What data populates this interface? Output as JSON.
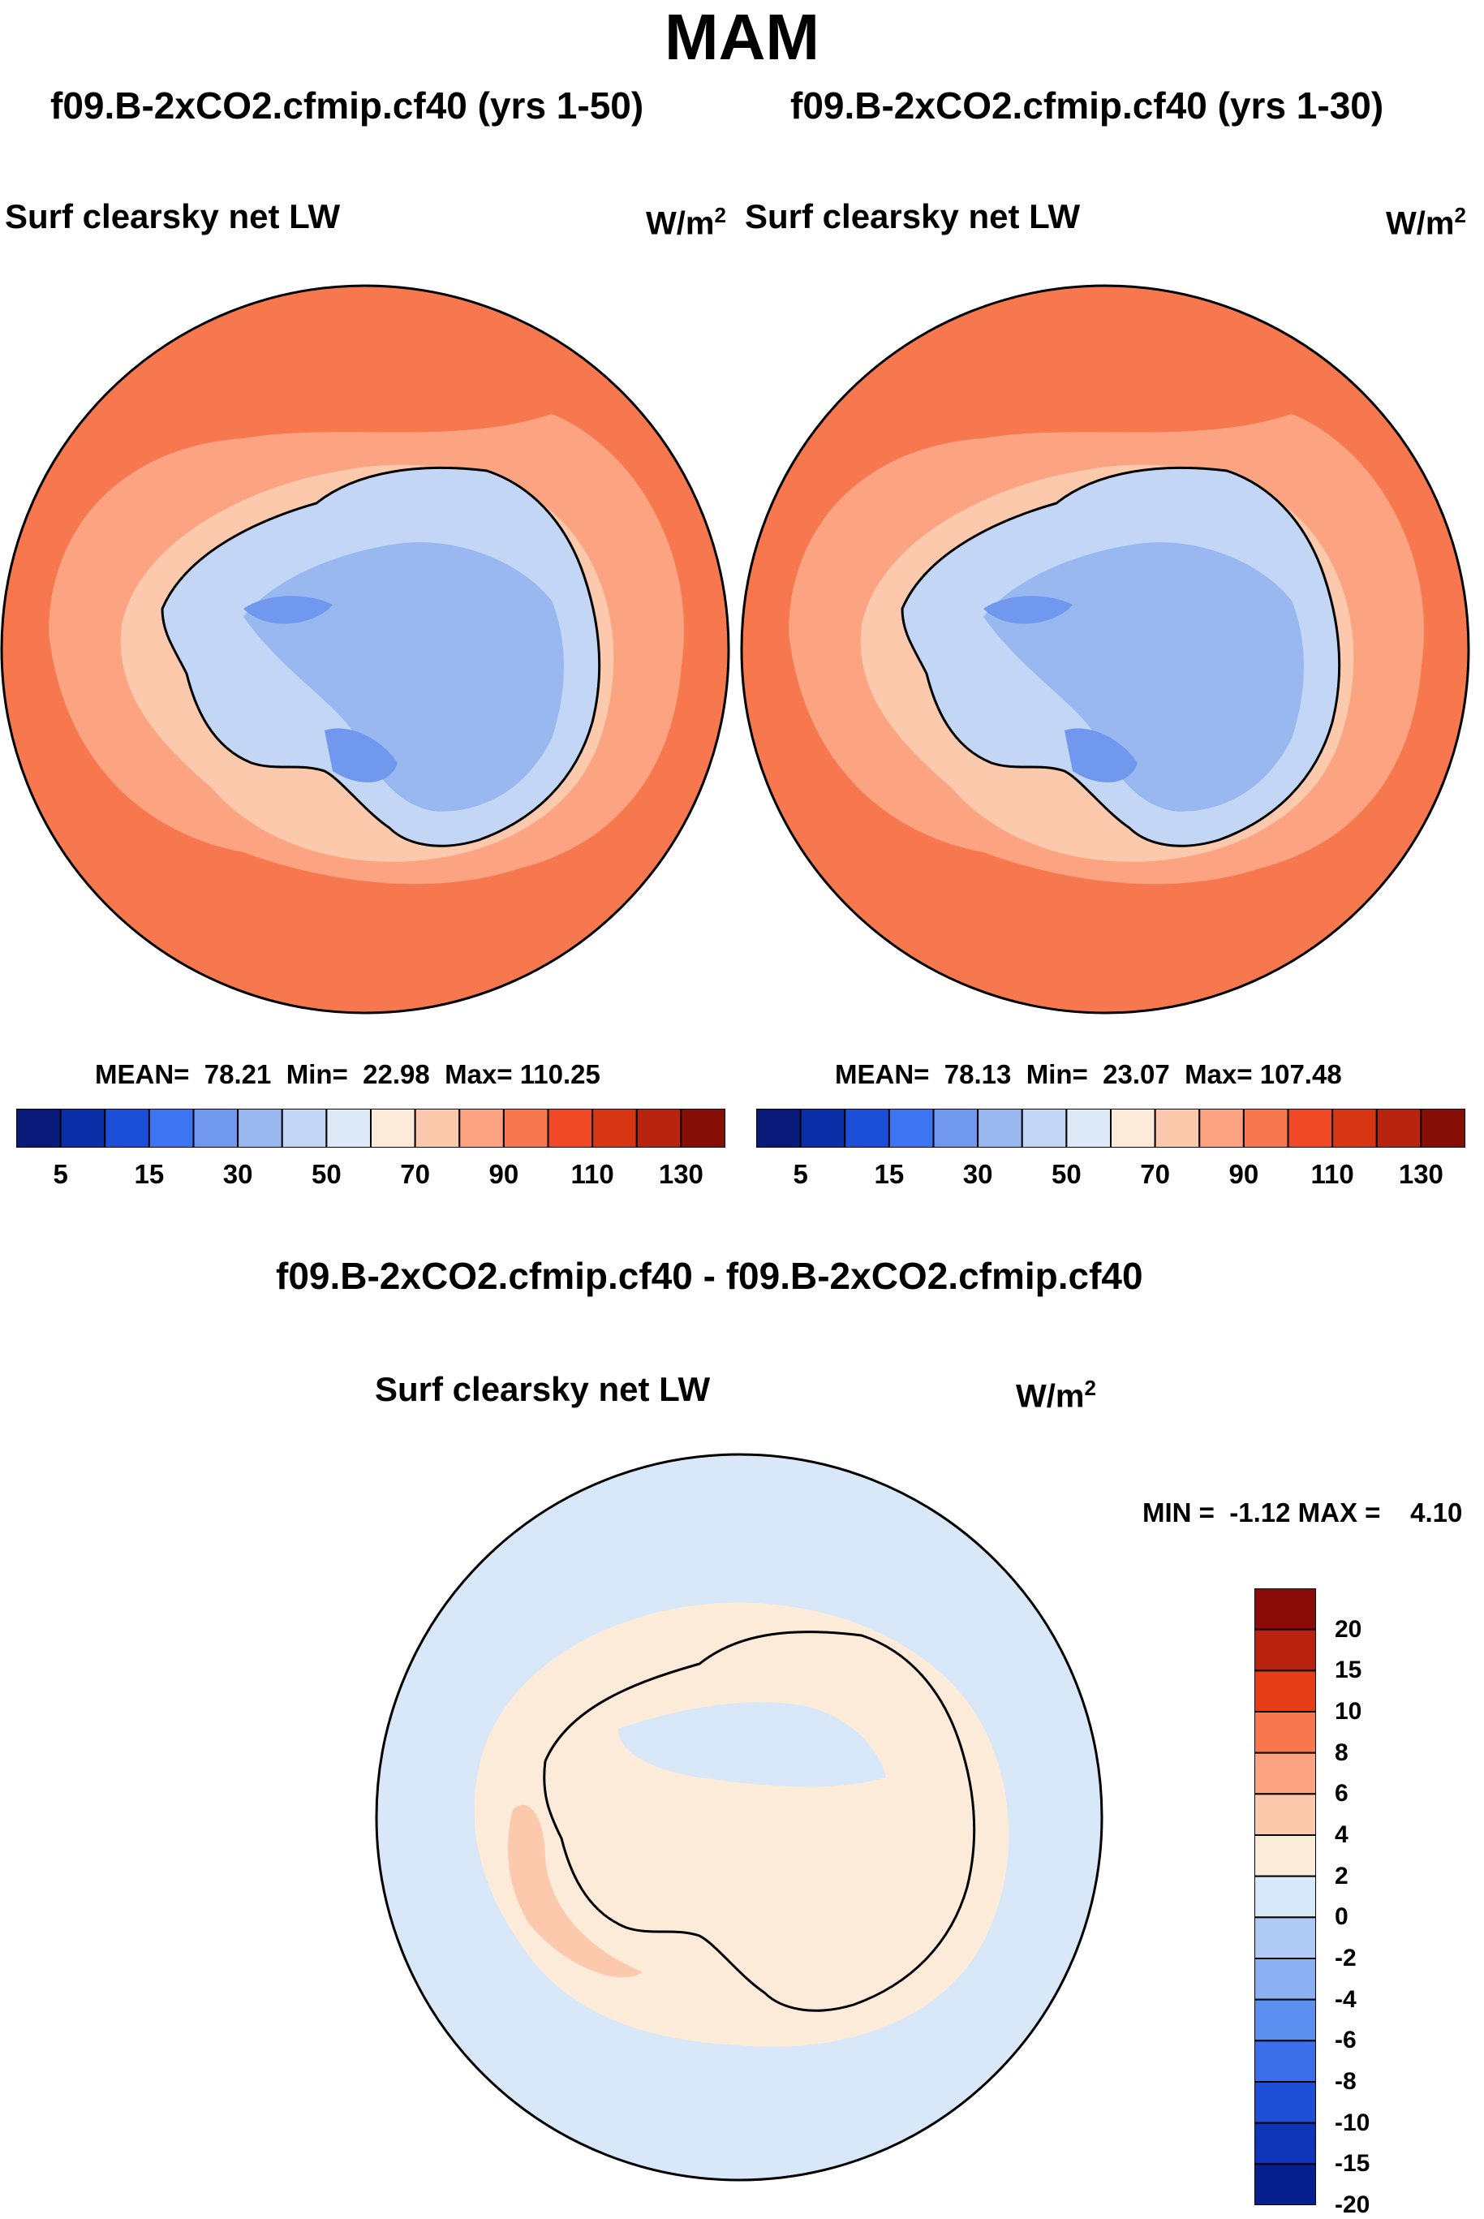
{
  "title": "MAM",
  "panel_left": {
    "case": "f09.B-2xCO2.cfmip.cf40 (yrs 1-50)",
    "variable": "Surf clearsky net LW",
    "units_base": "W/m",
    "units_exp": "2",
    "mean_label": "MEAN=",
    "mean": "78.21",
    "min_label": "Min=",
    "min": "22.98",
    "max_label": "Max=",
    "max": "110.25"
  },
  "panel_right": {
    "case": "f09.B-2xCO2.cfmip.cf40 (yrs 1-30)",
    "variable": "Surf clearsky net LW",
    "units_base": "W/m",
    "units_exp": "2",
    "mean_label": "MEAN=",
    "mean": "78.13",
    "min_label": "Min=",
    "min": "23.07",
    "max_label": "Max=",
    "max": "107.48"
  },
  "panel_diff": {
    "case": "f09.B-2xCO2.cfmip.cf40 - f09.B-2xCO2.cfmip.cf40",
    "variable": "Surf clearsky net LW",
    "units_base": "W/m",
    "units_exp": "2",
    "min_label": "MIN =",
    "min": "-1.12",
    "max_label": "MAX =",
    "max": "4.10"
  },
  "colorbar_abs": {
    "colors": [
      "#0a1a7a",
      "#0b2fa8",
      "#1c4fd8",
      "#3d74f2",
      "#6f98ee",
      "#9ab8f0",
      "#c3d6f6",
      "#dfeaf9",
      "#fdebd9",
      "#fdc9ad",
      "#fca381",
      "#f7784f",
      "#ef4a25",
      "#d83515",
      "#b72410",
      "#860f0a"
    ],
    "ticks": [
      "5",
      "15",
      "30",
      "50",
      "70",
      "90",
      "110",
      "130"
    ]
  },
  "colorbar_diff": {
    "colors": [
      "#8a0c09",
      "#b9220f",
      "#e53d18",
      "#f7784f",
      "#fca381",
      "#fdc9ad",
      "#fdebd9",
      "#d8e8f9",
      "#afcbf5",
      "#8cb1f2",
      "#5d8ff0",
      "#3b6ee8",
      "#1e4fd6",
      "#0e35b8",
      "#071f8f"
    ],
    "ticks": [
      "20",
      "15",
      "10",
      "8",
      "6",
      "4",
      "2",
      "0",
      "-2",
      "-4",
      "-6",
      "-8",
      "-10",
      "-15",
      "-20"
    ]
  },
  "chart_data": [
    {
      "type": "heatmap",
      "projection": "south polar stereographic",
      "title": "f09.B-2xCO2.cfmip.cf40 (yrs 1-50)",
      "variable": "Surf clearsky net LW",
      "units": "W/m2",
      "stats": {
        "mean": 78.21,
        "min": 22.98,
        "max": 110.25
      },
      "contour_levels": [
        5,
        10,
        15,
        20,
        30,
        40,
        50,
        60,
        70,
        80,
        90,
        100,
        110,
        120,
        130
      ]
    },
    {
      "type": "heatmap",
      "projection": "south polar stereographic",
      "title": "f09.B-2xCO2.cfmip.cf40 (yrs 1-30)",
      "variable": "Surf clearsky net LW",
      "units": "W/m2",
      "stats": {
        "mean": 78.13,
        "min": 23.07,
        "max": 107.48
      },
      "contour_levels": [
        5,
        10,
        15,
        20,
        30,
        40,
        50,
        60,
        70,
        80,
        90,
        100,
        110,
        120,
        130
      ]
    },
    {
      "type": "heatmap",
      "projection": "south polar stereographic",
      "title": "f09.B-2xCO2.cfmip.cf40 - f09.B-2xCO2.cfmip.cf40",
      "variable": "Surf clearsky net LW",
      "units": "W/m2",
      "stats": {
        "min": -1.12,
        "max": 4.1
      },
      "contour_levels": [
        -20,
        -15,
        -10,
        -8,
        -6,
        -4,
        -2,
        0,
        2,
        4,
        6,
        8,
        10,
        15,
        20
      ]
    }
  ]
}
